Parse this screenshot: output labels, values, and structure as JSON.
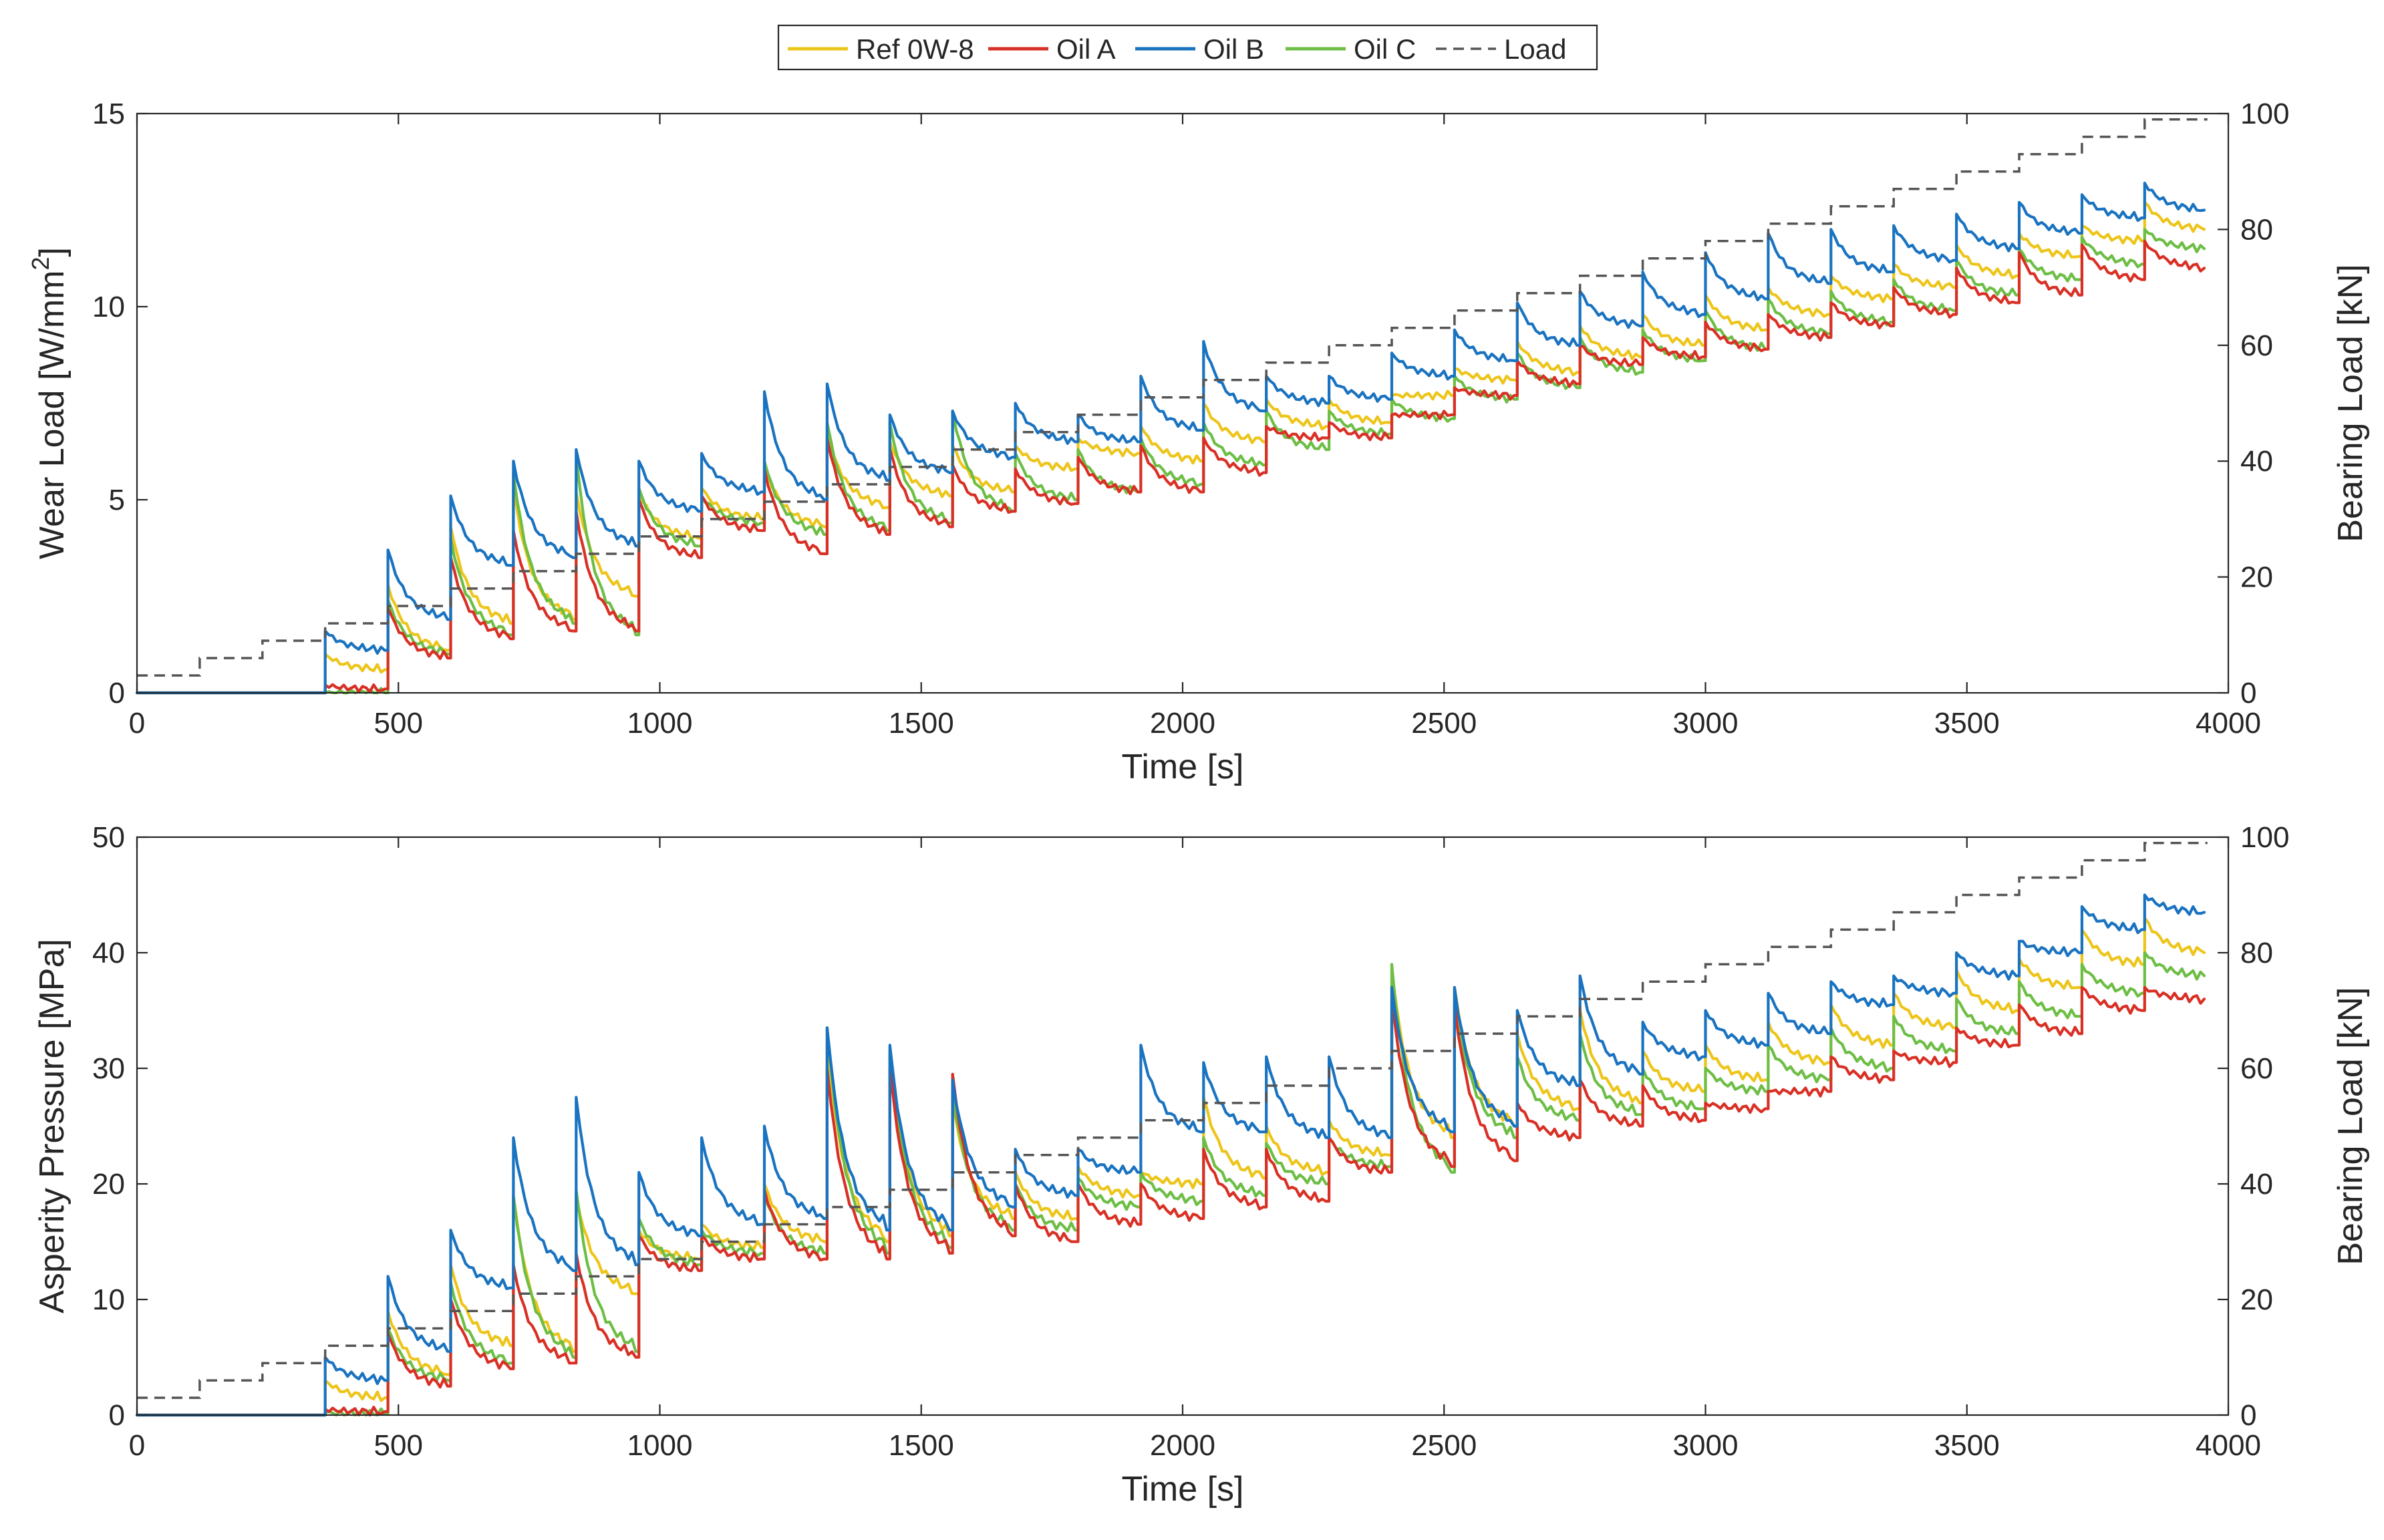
{
  "legend": {
    "entries": [
      {
        "key": "ref",
        "label": "Ref 0W-8",
        "color": "#EDC51A",
        "dash": false
      },
      {
        "key": "a",
        "label": "Oil A",
        "color": "#D93025",
        "dash": false
      },
      {
        "key": "b",
        "label": "Oil B",
        "color": "#1A73C0",
        "dash": false
      },
      {
        "key": "c",
        "label": "Oil C",
        "color": "#6DBE45",
        "dash": false
      },
      {
        "key": "load",
        "label": "Load",
        "color": "#555555",
        "dash": true
      }
    ]
  },
  "chart_data": [
    {
      "type": "line",
      "title": "",
      "xlabel": "Time [s]",
      "ylabel_main": "Wear Load [W/mm",
      "ylabel_sup": "2",
      "ylabel_close": "]",
      "ylabel_right": "Bearing Load [kN]",
      "xlim": [
        0,
        4000
      ],
      "ylim": [
        0,
        15
      ],
      "ylim_right": [
        0,
        100
      ],
      "xticks": [
        "0",
        "500",
        "1000",
        "1500",
        "2000",
        "2500",
        "3000",
        "3500",
        "4000"
      ],
      "yticks": [
        "0",
        "5",
        "10",
        "15"
      ],
      "yticks_right": [
        "0",
        "20",
        "40",
        "60",
        "80",
        "100"
      ],
      "step_duration_s": 120,
      "first_contact_s": 360,
      "segments": {
        "start_ref": [
          1.0,
          2.8,
          4.3,
          5.3,
          5.2,
          5.2,
          5.3,
          5.9,
          6.7,
          6.5,
          6.4,
          6.4,
          6.6,
          6.9,
          7.5,
          7.6,
          7.6,
          7.7,
          8.4,
          9.1,
          9.5,
          9.8,
          10.3,
          10.5,
          10.8,
          11.1,
          11.6,
          11.9,
          12.1,
          12.7
        ],
        "end_ref": [
          0.6,
          1.1,
          1.8,
          1.9,
          2.5,
          4.0,
          4.5,
          4.3,
          4.8,
          5.1,
          5.2,
          5.8,
          6.2,
          6.0,
          6.5,
          6.9,
          7.0,
          7.7,
          8.1,
          8.3,
          8.7,
          9.0,
          9.4,
          9.8,
          10.2,
          10.5,
          10.8,
          11.3,
          11.7,
          12.0
        ],
        "start_a": [
          0.2,
          2.2,
          3.5,
          4.2,
          4.7,
          5.0,
          5.1,
          5.8,
          6.6,
          6.3,
          5.9,
          5.8,
          6.1,
          6.4,
          6.6,
          6.9,
          7.0,
          7.2,
          7.9,
          8.6,
          9.0,
          9.2,
          9.6,
          9.8,
          10.1,
          10.5,
          11.0,
          11.4,
          11.6,
          11.7
        ],
        "end_a": [
          0.1,
          0.9,
          1.4,
          1.6,
          1.6,
          3.5,
          4.2,
          3.6,
          4.1,
          4.3,
          4.7,
          4.9,
          5.2,
          5.2,
          5.7,
          6.6,
          6.6,
          7.2,
          7.7,
          8.0,
          8.5,
          8.7,
          8.9,
          9.2,
          9.5,
          9.8,
          10.1,
          10.3,
          10.7,
          11.0
        ],
        "start_b": [
          1.6,
          3.7,
          5.1,
          6.0,
          6.3,
          6.0,
          6.2,
          7.8,
          8.0,
          7.2,
          7.3,
          7.5,
          7.2,
          8.2,
          9.1,
          8.2,
          8.2,
          8.8,
          9.4,
          10.1,
          10.4,
          10.9,
          11.4,
          11.9,
          12.0,
          12.1,
          12.4,
          12.7,
          12.9,
          13.2
        ],
        "end_b": [
          1.1,
          1.9,
          3.3,
          3.5,
          3.8,
          4.7,
          5.2,
          5.0,
          5.5,
          5.7,
          6.1,
          6.5,
          6.5,
          6.8,
          7.3,
          7.5,
          7.6,
          8.2,
          8.6,
          9.0,
          9.5,
          9.8,
          10.2,
          10.6,
          10.9,
          11.2,
          11.5,
          11.9,
          12.3,
          12.5
        ],
        "start_c": [
          0.0,
          2.4,
          4.0,
          5.7,
          6.1,
          5.3,
          5.1,
          6.0,
          7.0,
          7.0,
          7.3,
          6.2,
          6.3,
          6.6,
          7.0,
          7.3,
          7.3,
          7.6,
          8.2,
          8.8,
          9.2,
          9.4,
          9.9,
          10.2,
          10.4,
          10.7,
          11.2,
          11.5,
          11.8,
          12.0
        ],
        "end_c": [
          0.0,
          1.0,
          1.5,
          1.8,
          1.5,
          3.8,
          4.4,
          4.1,
          4.2,
          4.4,
          4.7,
          5.0,
          5.2,
          5.4,
          5.9,
          6.3,
          6.7,
          7.1,
          7.6,
          7.9,
          8.3,
          8.6,
          8.9,
          9.3,
          9.6,
          9.9,
          10.3,
          10.7,
          11.1,
          11.5
        ]
      },
      "load_steps_kN": [
        3,
        6,
        9,
        12,
        15,
        18,
        21,
        24,
        27,
        30,
        33,
        36,
        39,
        42,
        45,
        48,
        51,
        54,
        57,
        60,
        63,
        66,
        69,
        72,
        75,
        78,
        81,
        84,
        87,
        90,
        93,
        96,
        99
      ]
    },
    {
      "type": "line",
      "title": "",
      "xlabel": "Time [s]",
      "ylabel_main": "Asperity Pressure [MPa]",
      "ylabel_sup": "",
      "ylabel_close": "",
      "ylabel_right": "Bearing Load [kN]",
      "xlim": [
        0,
        4000
      ],
      "ylim": [
        0,
        50
      ],
      "ylim_right": [
        0,
        100
      ],
      "xticks": [
        "0",
        "500",
        "1000",
        "1500",
        "2000",
        "2500",
        "3000",
        "3500",
        "4000"
      ],
      "yticks": [
        "0",
        "10",
        "20",
        "30",
        "40",
        "50"
      ],
      "yticks_right": [
        "0",
        "20",
        "40",
        "60",
        "80",
        "100"
      ],
      "step_duration_s": 120,
      "first_contact_s": 360,
      "segments": {
        "start_ref": [
          3.0,
          9.0,
          13.0,
          19.0,
          19.0,
          16.0,
          16.5,
          20.0,
          32.0,
          31.0,
          27.0,
          21.0,
          21.5,
          21.0,
          27.5,
          25.0,
          25.5,
          38.5,
          37.0,
          33.0,
          35.0,
          31.5,
          32.0,
          34.0,
          35.5,
          36.5,
          38.5,
          39.5,
          42.0,
          43.0
        ],
        "end_ref": [
          1.5,
          3.5,
          6.0,
          5.5,
          10.5,
          13.5,
          14.5,
          15.0,
          15.0,
          15.5,
          17.0,
          17.0,
          19.0,
          20.0,
          20.5,
          21.0,
          22.5,
          24.0,
          25.0,
          26.5,
          27.0,
          28.0,
          29.0,
          30.5,
          32.0,
          33.5,
          35.0,
          37.0,
          39.0,
          40.0
        ],
        "start_a": [
          0.5,
          7.0,
          10.0,
          13.0,
          14.0,
          15.5,
          15.5,
          19.5,
          30.0,
          30.0,
          29.5,
          20.0,
          20.0,
          20.0,
          23.0,
          23.0,
          24.0,
          36.0,
          35.5,
          27.0,
          29.0,
          28.5,
          27.0,
          28.0,
          31.0,
          31.5,
          33.5,
          35.5,
          37.0,
          37.0
        ],
        "end_a": [
          0.3,
          2.5,
          4.0,
          4.5,
          5.0,
          12.5,
          13.5,
          13.5,
          13.5,
          14.0,
          15.5,
          15.0,
          16.5,
          17.0,
          18.0,
          18.5,
          21.0,
          21.5,
          22.0,
          24.0,
          25.0,
          25.5,
          26.5,
          28.0,
          29.0,
          30.5,
          32.0,
          33.0,
          35.0,
          36.0
        ],
        "start_b": [
          5.0,
          12.0,
          16.0,
          24.0,
          27.5,
          21.0,
          24.0,
          25.0,
          33.5,
          32.0,
          29.0,
          23.0,
          23.0,
          32.0,
          30.5,
          31.0,
          31.0,
          37.0,
          37.0,
          35.0,
          38.0,
          34.0,
          35.0,
          36.5,
          37.5,
          38.0,
          40.0,
          41.0,
          44.0,
          45.0
        ],
        "end_b": [
          3.0,
          5.5,
          11.0,
          12.5,
          13.0,
          15.5,
          16.5,
          17.0,
          16.0,
          16.0,
          18.0,
          19.0,
          21.0,
          24.5,
          24.5,
          24.0,
          24.0,
          24.5,
          25.0,
          28.5,
          29.5,
          31.0,
          32.0,
          33.0,
          35.5,
          36.5,
          38.0,
          40.0,
          42.0,
          43.5
        ],
        "start_c": [
          0.2,
          7.5,
          11.5,
          19.0,
          19.5,
          17.0,
          16.0,
          19.0,
          33.5,
          31.5,
          28.0,
          20.0,
          20.5,
          21.0,
          24.0,
          23.5,
          24.0,
          39.0,
          36.5,
          31.0,
          33.0,
          30.0,
          30.0,
          32.0,
          33.5,
          34.5,
          36.0,
          37.5,
          39.0,
          40.0
        ],
        "end_c": [
          0.1,
          3.0,
          4.5,
          5.0,
          5.5,
          13.0,
          14.0,
          14.0,
          14.0,
          14.5,
          16.0,
          16.0,
          18.0,
          18.5,
          19.0,
          20.0,
          21.5,
          21.0,
          24.0,
          25.5,
          26.0,
          26.5,
          28.0,
          29.0,
          30.0,
          31.5,
          33.0,
          34.5,
          36.5,
          38.0
        ]
      },
      "load_steps_kN": [
        3,
        6,
        9,
        12,
        15,
        18,
        21,
        24,
        27,
        30,
        33,
        36,
        39,
        42,
        45,
        48,
        51,
        54,
        57,
        60,
        63,
        66,
        69,
        72,
        75,
        78,
        81,
        84,
        87,
        90,
        93,
        96,
        99
      ]
    }
  ]
}
